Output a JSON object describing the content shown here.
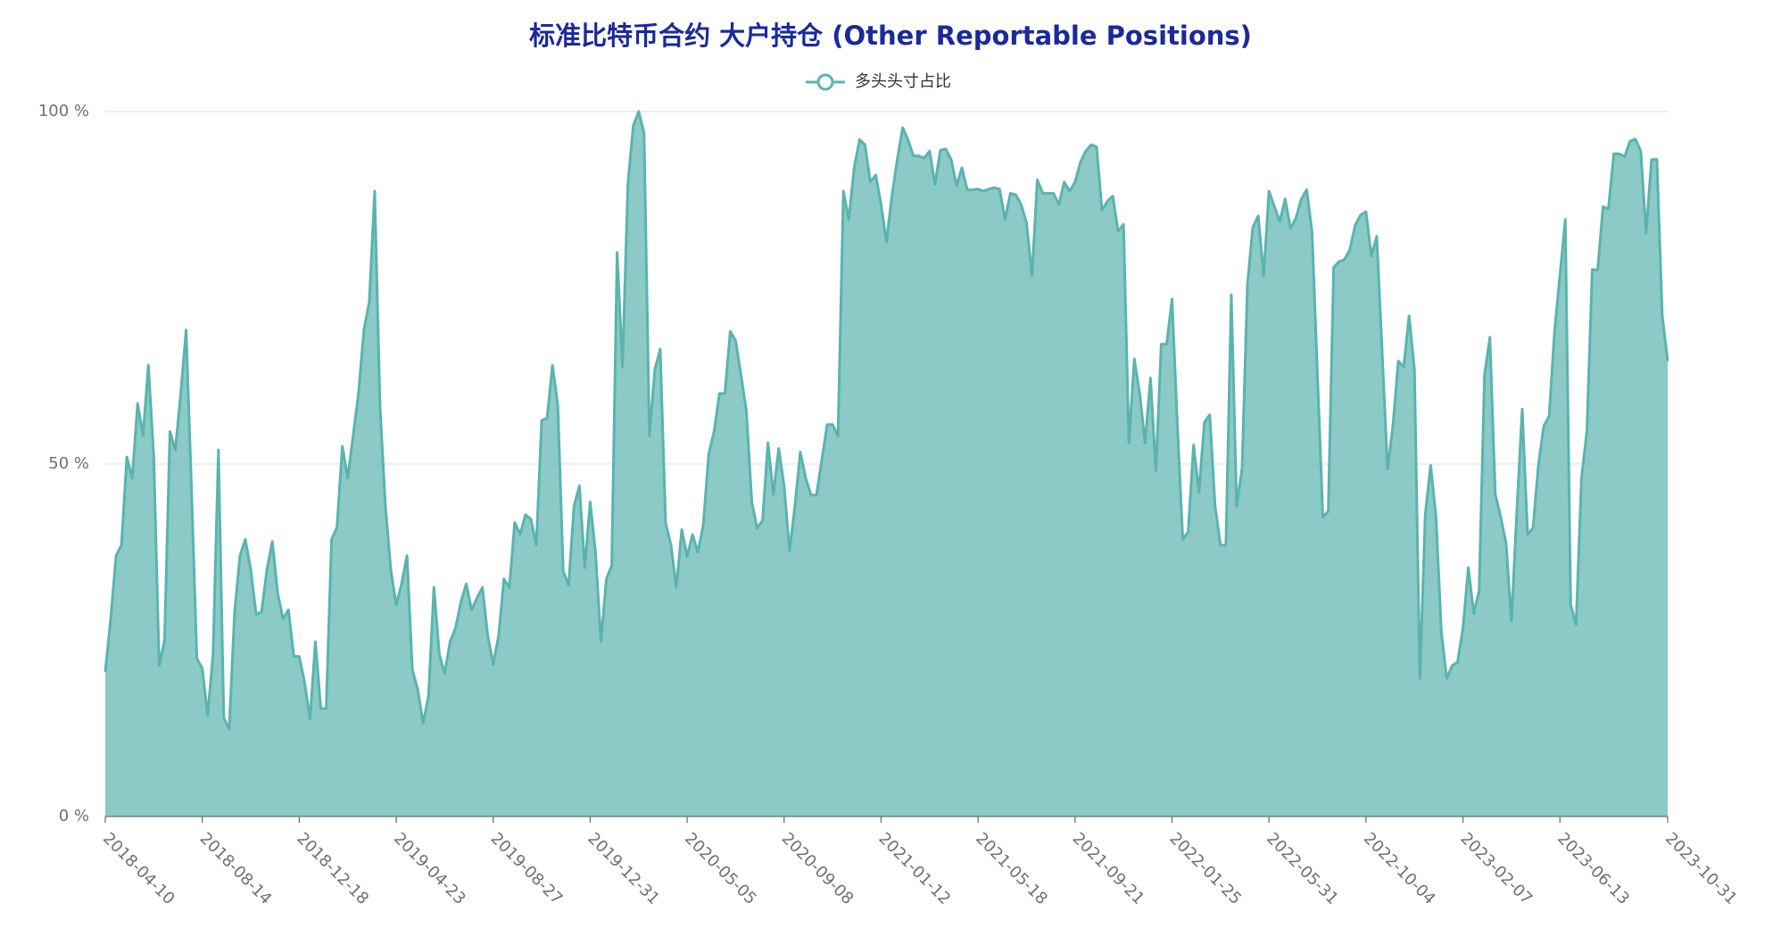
{
  "chart_data": {
    "type": "area",
    "title": "标准比特币合约 大户持仓 (Other Reportable Positions)",
    "categories": [
      "2018-04-10",
      null,
      null,
      null,
      null,
      null,
      null,
      null,
      null,
      null,
      null,
      null,
      null,
      null,
      null,
      null,
      null,
      null,
      "2018-08-14",
      null,
      null,
      null,
      null,
      null,
      null,
      null,
      null,
      null,
      null,
      null,
      null,
      null,
      null,
      null,
      null,
      null,
      "2018-12-18",
      null,
      null,
      null,
      null,
      null,
      null,
      null,
      null,
      null,
      null,
      null,
      null,
      null,
      null,
      null,
      null,
      null,
      "2019-04-23",
      null,
      null,
      null,
      null,
      null,
      null,
      null,
      null,
      null,
      null,
      null,
      null,
      null,
      null,
      null,
      null,
      null,
      "2019-08-27",
      null,
      null,
      null,
      null,
      null,
      null,
      null,
      null,
      null,
      null,
      null,
      null,
      null,
      null,
      null,
      null,
      null,
      "2019-12-31",
      null,
      null,
      null,
      null,
      null,
      null,
      null,
      null,
      null,
      null,
      null,
      null,
      null,
      null,
      null,
      null,
      null,
      "2020-05-05",
      null,
      null,
      null,
      null,
      null,
      null,
      null,
      null,
      null,
      null,
      null,
      null,
      null,
      null,
      null,
      null,
      null,
      "2020-09-08",
      null,
      null,
      null,
      null,
      null,
      null,
      null,
      null,
      null,
      null,
      null,
      null,
      null,
      null,
      null,
      null,
      null,
      "2021-01-12",
      null,
      null,
      null,
      null,
      null,
      null,
      null,
      null,
      null,
      null,
      null,
      null,
      null,
      null,
      null,
      null,
      null,
      "2021-05-18",
      null,
      null,
      null,
      null,
      null,
      null,
      null,
      null,
      null,
      null,
      null,
      null,
      null,
      null,
      null,
      null,
      null,
      "2021-09-21",
      null,
      null,
      null,
      null,
      null,
      null,
      null,
      null,
      null,
      null,
      null,
      null,
      null,
      null,
      null,
      null,
      null,
      "2022-01-25",
      null,
      null,
      null,
      null,
      null,
      null,
      null,
      null,
      null,
      null,
      null,
      null,
      null,
      null,
      null,
      null,
      null,
      "2022-05-31",
      null,
      null,
      null,
      null,
      null,
      null,
      null,
      null,
      null,
      null,
      null,
      null,
      null,
      null,
      null,
      null,
      null,
      "2022-10-04",
      null,
      null,
      null,
      null,
      null,
      null,
      null,
      null,
      null,
      null,
      null,
      null,
      null,
      null,
      null,
      null,
      null,
      "2023-02-07",
      null,
      null,
      null,
      null,
      null,
      null,
      null,
      null,
      null,
      null,
      null,
      null,
      null,
      null,
      null,
      null,
      null,
      "2023-06-13",
      null,
      null,
      null,
      null,
      null,
      null,
      null,
      null,
      null,
      null,
      null,
      null,
      null,
      null,
      null,
      null,
      null,
      null,
      null,
      "2023-10-31"
    ],
    "series": [
      {
        "name": "多头头寸占比",
        "color": "#5ab4ae",
        "values": [
          20.5,
          28,
          37,
          38.5,
          51,
          48,
          58.6,
          54,
          64,
          51,
          21.4,
          25,
          54.6,
          52,
          60,
          69,
          46.5,
          22.4,
          21,
          14.3,
          23,
          52,
          14,
          12.4,
          29,
          37,
          39.3,
          35,
          28.7,
          29,
          35,
          39,
          31.7,
          28,
          29.3,
          22.7,
          22.7,
          19,
          13.8,
          24.8,
          15.3,
          15.3,
          39.3,
          41,
          52.5,
          48,
          54,
          60,
          69,
          73,
          88.7,
          58,
          44,
          35,
          30,
          33,
          37,
          20.8,
          18,
          13.2,
          17.2,
          32.5,
          23,
          20.3,
          24.8,
          26.7,
          30.4,
          33,
          29.3,
          31,
          32.5,
          25.6,
          21.6,
          25.6,
          33.7,
          32.5,
          41.7,
          40,
          42.8,
          42.2,
          38.5,
          56.2,
          56.5,
          64,
          58.3,
          34.8,
          32.8,
          44,
          46.9,
          35.3,
          44.6,
          37.4,
          24.8,
          33.7,
          35.6,
          80,
          63.8,
          89.7,
          98,
          100,
          97,
          54,
          63.4,
          66.3,
          41.7,
          38.5,
          32.5,
          40.7,
          36.9,
          40,
          37.5,
          41.4,
          51.4,
          54.6,
          60,
          60,
          68.8,
          67.5,
          62.6,
          57.5,
          44.6,
          40.9,
          42,
          53,
          45.7,
          52.2,
          46.9,
          37.7,
          44,
          51.7,
          48,
          45.6,
          45.6,
          50.6,
          55.6,
          55.6,
          54,
          88.7,
          84.7,
          92,
          96,
          95.3,
          90,
          91,
          86.8,
          81.5,
          88,
          93.2,
          97.7,
          96,
          93.7,
          93.7,
          93.4,
          94.4,
          89.7,
          94.5,
          94.7,
          93.2,
          89.5,
          92,
          88.9,
          88.9,
          89,
          88.7,
          89,
          89.2,
          89,
          84.7,
          88.4,
          88.2,
          86.8,
          84.2,
          76.7,
          90.3,
          88.4,
          88.4,
          88.4,
          86.8,
          90,
          88.7,
          90,
          92.8,
          94.4,
          95.3,
          95,
          86,
          87.3,
          88,
          83,
          84,
          53,
          64.9,
          60,
          53,
          62.2,
          49,
          67,
          67,
          73.4,
          55.4,
          39.3,
          40.4,
          52.7,
          46,
          55.9,
          57,
          44,
          38.5,
          38.5,
          74,
          44,
          49.4,
          75.5,
          83.6,
          85.2,
          76.7,
          88.7,
          86.5,
          84.4,
          87.6,
          83.4,
          84.9,
          87.6,
          88.9,
          82.8,
          62.6,
          42.5,
          43.3,
          77.9,
          78.7,
          79,
          80.4,
          83.9,
          85.3,
          85.8,
          79.5,
          82.3,
          65.9,
          49.3,
          55.4,
          64.6,
          63.8,
          71,
          63.4,
          19.6,
          42.8,
          49.8,
          42.5,
          26,
          19.6,
          21.4,
          21.9,
          26.7,
          35.3,
          28.8,
          32,
          62.6,
          68,
          45.7,
          42.5,
          38.8,
          27.7,
          43.3,
          57.8,
          40,
          40.9,
          49.8,
          55.4,
          56.8,
          68.8,
          76.7,
          84.7,
          30,
          27.2,
          48,
          54.6,
          77.6,
          77.5,
          86.5,
          86.2,
          94,
          94,
          93.6,
          95.8,
          96.1,
          94.4,
          82.8,
          93.2,
          93.2,
          71,
          64.6
        ]
      }
    ],
    "ylim": [
      0,
      100
    ],
    "yticks": [
      {
        "value": 0,
        "label": "0 %"
      },
      {
        "value": 50,
        "label": "50 %"
      },
      {
        "value": 100,
        "label": "100 %"
      }
    ],
    "grid": true
  }
}
